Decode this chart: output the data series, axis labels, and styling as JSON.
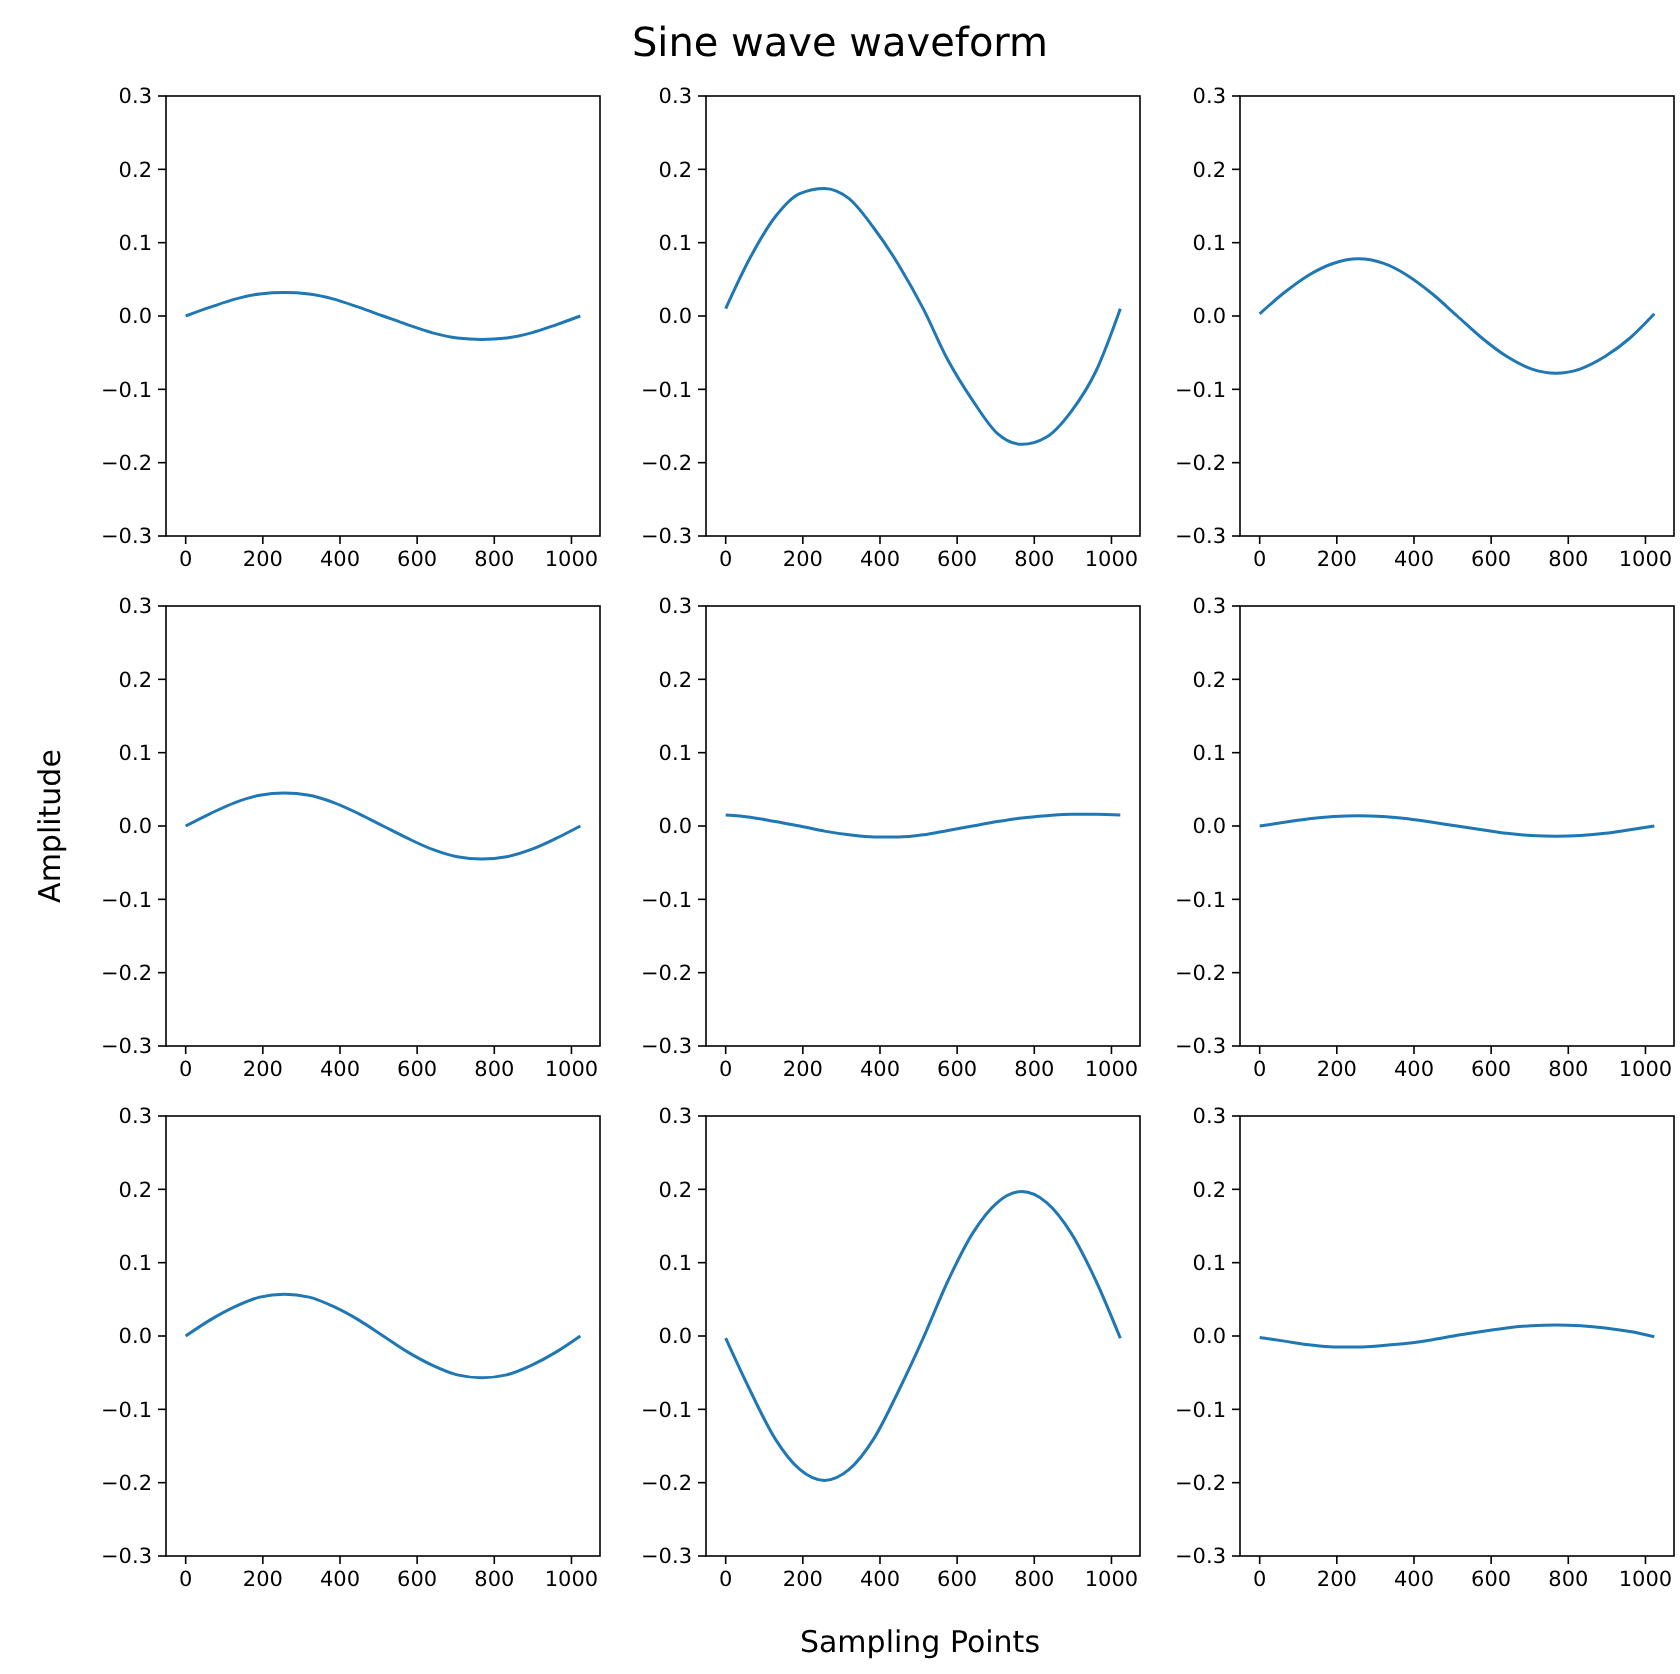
{
  "chart_data": [
    {
      "type": "line",
      "x": [
        0,
        64,
        128,
        192,
        256,
        320,
        384,
        448,
        512,
        576,
        640,
        704,
        768,
        832,
        896,
        960,
        1023
      ],
      "values": [
        0,
        0.012,
        0.023,
        0.03,
        0.032,
        0.03,
        0.023,
        0.012,
        0,
        -0.012,
        -0.023,
        -0.03,
        -0.032,
        -0.03,
        -0.023,
        -0.012,
        0
      ],
      "color": "#1f77b4",
      "xlim": [
        -51,
        1074
      ],
      "ylim": [
        -0.3,
        0.3
      ],
      "xticks": [
        0,
        200,
        400,
        600,
        800,
        1000
      ],
      "yticks": [
        {
          "value": -0.3,
          "label": "−0.3"
        },
        {
          "value": -0.2,
          "label": "−0.2"
        },
        {
          "value": -0.1,
          "label": "−0.1"
        },
        {
          "value": 0,
          "label": "0.0"
        },
        {
          "value": 0.1,
          "label": "0.1"
        },
        {
          "value": 0.2,
          "label": "0.2"
        },
        {
          "value": 0.3,
          "label": "0.3"
        }
      ]
    },
    {
      "type": "line",
      "title": "Sine wave waveform",
      "x": [
        0,
        64,
        128,
        192,
        256,
        320,
        384,
        448,
        512,
        576,
        640,
        704,
        768,
        832,
        896,
        960,
        1023
      ],
      "values": [
        0.01,
        0.08,
        0.135,
        0.167,
        0.174,
        0.16,
        0.12,
        0.07,
        0.01,
        -0.06,
        -0.115,
        -0.16,
        -0.175,
        -0.165,
        -0.13,
        -0.075,
        0.01
      ],
      "color": "#1f77b4",
      "xlim": [
        -51,
        1074
      ],
      "ylim": [
        -0.3,
        0.3
      ],
      "xticks": [
        0,
        200,
        400,
        600,
        800,
        1000
      ],
      "yticks": [
        {
          "value": -0.3,
          "label": "−0.3"
        },
        {
          "value": -0.2,
          "label": "−0.2"
        },
        {
          "value": -0.1,
          "label": "−0.1"
        },
        {
          "value": 0,
          "label": "0.0"
        },
        {
          "value": 0.1,
          "label": "0.1"
        },
        {
          "value": 0.2,
          "label": "0.2"
        },
        {
          "value": 0.3,
          "label": "0.3"
        }
      ]
    },
    {
      "type": "line",
      "x": [
        0,
        64,
        128,
        192,
        256,
        320,
        384,
        448,
        512,
        576,
        640,
        704,
        768,
        832,
        896,
        960,
        1023
      ],
      "values": [
        0.003,
        0.032,
        0.056,
        0.072,
        0.078,
        0.072,
        0.055,
        0.03,
        0,
        -0.03,
        -0.055,
        -0.072,
        -0.078,
        -0.072,
        -0.055,
        -0.03,
        0.003
      ],
      "color": "#1f77b4",
      "xlim": [
        -51,
        1074
      ],
      "ylim": [
        -0.3,
        0.3
      ],
      "xticks": [
        0,
        200,
        400,
        600,
        800,
        1000
      ],
      "yticks": [
        {
          "value": -0.3,
          "label": "−0.3"
        },
        {
          "value": -0.2,
          "label": "−0.2"
        },
        {
          "value": -0.1,
          "label": "−0.1"
        },
        {
          "value": 0,
          "label": "0.0"
        },
        {
          "value": 0.1,
          "label": "0.1"
        },
        {
          "value": 0.2,
          "label": "0.2"
        },
        {
          "value": 0.3,
          "label": "0.3"
        }
      ]
    },
    {
      "type": "line",
      "ylabel": "Amplitude",
      "x": [
        0,
        64,
        128,
        192,
        256,
        320,
        384,
        448,
        512,
        576,
        640,
        704,
        768,
        832,
        896,
        960,
        1023
      ],
      "values": [
        0,
        0.017,
        0.032,
        0.042,
        0.045,
        0.042,
        0.032,
        0.017,
        0,
        -0.017,
        -0.032,
        -0.042,
        -0.045,
        -0.042,
        -0.032,
        -0.017,
        0
      ],
      "color": "#1f77b4",
      "xlim": [
        -51,
        1074
      ],
      "ylim": [
        -0.3,
        0.3
      ],
      "xticks": [
        0,
        200,
        400,
        600,
        800,
        1000
      ],
      "yticks": [
        {
          "value": -0.3,
          "label": "−0.3"
        },
        {
          "value": -0.2,
          "label": "−0.2"
        },
        {
          "value": -0.1,
          "label": "−0.1"
        },
        {
          "value": 0,
          "label": "0.0"
        },
        {
          "value": 0.1,
          "label": "0.1"
        },
        {
          "value": 0.2,
          "label": "0.2"
        },
        {
          "value": 0.3,
          "label": "0.3"
        }
      ]
    },
    {
      "type": "line",
      "x": [
        0,
        64,
        128,
        192,
        256,
        320,
        384,
        448,
        512,
        576,
        640,
        704,
        768,
        832,
        896,
        960,
        1023
      ],
      "values": [
        0.015,
        0.012,
        0.006,
        0,
        -0.007,
        -0.012,
        -0.015,
        -0.015,
        -0.012,
        -0.006,
        0,
        0.006,
        0.011,
        0.014,
        0.016,
        0.016,
        0.015
      ],
      "color": "#1f77b4",
      "xlim": [
        -51,
        1074
      ],
      "ylim": [
        -0.3,
        0.3
      ],
      "xticks": [
        0,
        200,
        400,
        600,
        800,
        1000
      ],
      "yticks": [
        {
          "value": -0.3,
          "label": "−0.3"
        },
        {
          "value": -0.2,
          "label": "−0.2"
        },
        {
          "value": -0.1,
          "label": "−0.1"
        },
        {
          "value": 0,
          "label": "0.0"
        },
        {
          "value": 0.1,
          "label": "0.1"
        },
        {
          "value": 0.2,
          "label": "0.2"
        },
        {
          "value": 0.3,
          "label": "0.3"
        }
      ]
    },
    {
      "type": "line",
      "x": [
        0,
        64,
        128,
        192,
        256,
        320,
        384,
        448,
        512,
        576,
        640,
        704,
        768,
        832,
        896,
        960,
        1023
      ],
      "values": [
        0,
        0.005,
        0.01,
        0.013,
        0.014,
        0.013,
        0.01,
        0.005,
        0,
        -0.005,
        -0.01,
        -0.013,
        -0.014,
        -0.013,
        -0.01,
        -0.005,
        0
      ],
      "color": "#1f77b4",
      "xlim": [
        -51,
        1074
      ],
      "ylim": [
        -0.3,
        0.3
      ],
      "xticks": [
        0,
        200,
        400,
        600,
        800,
        1000
      ],
      "yticks": [
        {
          "value": -0.3,
          "label": "−0.3"
        },
        {
          "value": -0.2,
          "label": "−0.2"
        },
        {
          "value": -0.1,
          "label": "−0.1"
        },
        {
          "value": 0,
          "label": "0.0"
        },
        {
          "value": 0.1,
          "label": "0.1"
        },
        {
          "value": 0.2,
          "label": "0.2"
        },
        {
          "value": 0.3,
          "label": "0.3"
        }
      ]
    },
    {
      "type": "line",
      "x": [
        0,
        64,
        128,
        192,
        256,
        320,
        384,
        448,
        512,
        576,
        640,
        704,
        768,
        832,
        896,
        960,
        1023
      ],
      "values": [
        0,
        0.022,
        0.04,
        0.053,
        0.057,
        0.053,
        0.04,
        0.022,
        0,
        -0.022,
        -0.04,
        -0.053,
        -0.057,
        -0.053,
        -0.04,
        -0.022,
        0
      ],
      "color": "#1f77b4",
      "xlim": [
        -51,
        1074
      ],
      "ylim": [
        -0.3,
        0.3
      ],
      "xticks": [
        0,
        200,
        400,
        600,
        800,
        1000
      ],
      "yticks": [
        {
          "value": -0.3,
          "label": "−0.3"
        },
        {
          "value": -0.2,
          "label": "−0.2"
        },
        {
          "value": -0.1,
          "label": "−0.1"
        },
        {
          "value": 0,
          "label": "0.0"
        },
        {
          "value": 0.1,
          "label": "0.1"
        },
        {
          "value": 0.2,
          "label": "0.2"
        },
        {
          "value": 0.3,
          "label": "0.3"
        }
      ]
    },
    {
      "type": "line",
      "xlabel": "Sampling Points",
      "x": [
        0,
        64,
        128,
        192,
        256,
        320,
        384,
        448,
        512,
        576,
        640,
        704,
        768,
        832,
        896,
        960,
        1023
      ],
      "values": [
        -0.003,
        -0.075,
        -0.14,
        -0.182,
        -0.197,
        -0.182,
        -0.14,
        -0.075,
        -0.003,
        0.075,
        0.14,
        0.182,
        0.197,
        0.182,
        0.14,
        0.075,
        -0.003
      ],
      "color": "#1f77b4",
      "xlim": [
        -51,
        1074
      ],
      "ylim": [
        -0.3,
        0.3
      ],
      "xticks": [
        0,
        200,
        400,
        600,
        800,
        1000
      ],
      "yticks": [
        {
          "value": -0.3,
          "label": "−0.3"
        },
        {
          "value": -0.2,
          "label": "−0.2"
        },
        {
          "value": -0.1,
          "label": "−0.1"
        },
        {
          "value": 0,
          "label": "0.0"
        },
        {
          "value": 0.1,
          "label": "0.1"
        },
        {
          "value": 0.2,
          "label": "0.2"
        },
        {
          "value": 0.3,
          "label": "0.3"
        }
      ]
    },
    {
      "type": "line",
      "x": [
        0,
        64,
        128,
        192,
        256,
        320,
        384,
        448,
        512,
        576,
        640,
        704,
        768,
        832,
        896,
        960,
        1023
      ],
      "values": [
        -0.002,
        -0.007,
        -0.012,
        -0.015,
        -0.015,
        -0.013,
        -0.01,
        -0.005,
        0.001,
        0.006,
        0.011,
        0.014,
        0.015,
        0.014,
        0.011,
        0.006,
        -0.001
      ],
      "color": "#1f77b4",
      "xlim": [
        -51,
        1074
      ],
      "ylim": [
        -0.3,
        0.3
      ],
      "xticks": [
        0,
        200,
        400,
        600,
        800,
        1000
      ],
      "yticks": [
        {
          "value": -0.3,
          "label": "−0.3"
        },
        {
          "value": -0.2,
          "label": "−0.2"
        },
        {
          "value": -0.1,
          "label": "−0.1"
        },
        {
          "value": 0,
          "label": "0.0"
        },
        {
          "value": 0.1,
          "label": "0.1"
        },
        {
          "value": 0.2,
          "label": "0.2"
        },
        {
          "value": 0.3,
          "label": "0.3"
        }
      ]
    }
  ]
}
